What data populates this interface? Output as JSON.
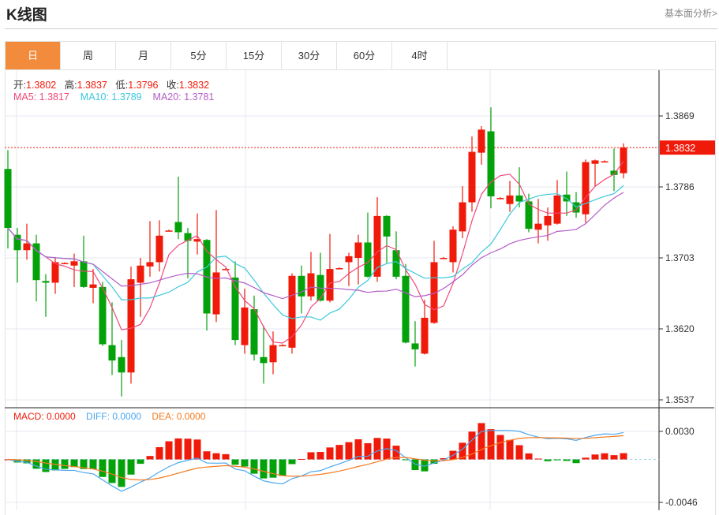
{
  "header": {
    "title": "K线图",
    "link": "基本面分析>"
  },
  "tabs": [
    "日",
    "周",
    "月",
    "5分",
    "15分",
    "30分",
    "60分",
    "4时"
  ],
  "active_tab": 0,
  "info": {
    "open_label": "开:",
    "open": "1.3802",
    "high_label": "高:",
    "high": "1.3837",
    "low_label": "低:",
    "low": "1.3796",
    "close_label": "收:",
    "close": "1.3832",
    "ma5": "MA5: 1.3817",
    "ma10": "MA10: 1.3789",
    "ma20": "MA20: 1.3781"
  },
  "macd_info": {
    "macd": "MACD: 0.0000",
    "diff": "DIFF: 0.0000",
    "dea": "DEA: 0.0000"
  },
  "colors": {
    "up": "#f01a0a",
    "down": "#04a20a",
    "ma5": "#f0487a",
    "ma10": "#3cc8dc",
    "ma20": "#b45cc8",
    "diff": "#4aa8f0",
    "dea": "#f57a20",
    "tab_active": "#f28b3c"
  },
  "chart_data": {
    "type": "candlestick",
    "price_axis": {
      "ticks": [
        "1.3869",
        "1.3786",
        "1.3703",
        "1.3620",
        "1.3537"
      ],
      "range": [
        1.3537,
        1.3869
      ]
    },
    "macd_axis": {
      "ticks": [
        "0.0030",
        "-0.0046"
      ],
      "range": [
        -0.0046,
        0.003
      ]
    },
    "last_price_label": "1.3832",
    "ohlc": [
      [
        1.3807,
        1.3829,
        1.3714,
        1.3738
      ],
      [
        1.373,
        1.3738,
        1.3674,
        1.3712
      ],
      [
        1.3712,
        1.3743,
        1.3701,
        1.372
      ],
      [
        1.372,
        1.373,
        1.3652,
        1.3677
      ],
      [
        1.3676,
        1.3684,
        1.3634,
        1.3674
      ],
      [
        1.3674,
        1.3704,
        1.3661,
        1.3698
      ],
      [
        1.3697,
        1.3698,
        1.3696,
        1.3697
      ],
      [
        1.3694,
        1.3708,
        1.3669,
        1.3699
      ],
      [
        1.3699,
        1.3729,
        1.3668,
        1.3669
      ],
      [
        1.3668,
        1.369,
        1.365,
        1.3672
      ],
      [
        1.3669,
        1.3675,
        1.36,
        1.3602
      ],
      [
        1.3601,
        1.3651,
        1.3566,
        1.3583
      ],
      [
        1.3587,
        1.3607,
        1.3541,
        1.3569
      ],
      [
        1.3569,
        1.3693,
        1.3556,
        1.3678
      ],
      [
        1.3674,
        1.3703,
        1.3634,
        1.3694
      ],
      [
        1.3693,
        1.3746,
        1.3681,
        1.3698
      ],
      [
        1.3698,
        1.3747,
        1.3687,
        1.3729
      ],
      [
        1.3735,
        1.3736,
        1.3734,
        1.3735
      ],
      [
        1.3745,
        1.3798,
        1.3725,
        1.3733
      ],
      [
        1.3732,
        1.3738,
        1.3679,
        1.3723
      ],
      [
        1.3722,
        1.3755,
        1.3707,
        1.3725
      ],
      [
        1.3724,
        1.3725,
        1.3618,
        1.3638
      ],
      [
        1.3637,
        1.3759,
        1.3628,
        1.3686
      ],
      [
        1.369,
        1.3691,
        1.3689,
        1.369
      ],
      [
        1.368,
        1.3699,
        1.3601,
        1.3607
      ],
      [
        1.3601,
        1.3667,
        1.3591,
        1.3645
      ],
      [
        1.3643,
        1.3659,
        1.3583,
        1.359
      ],
      [
        1.3587,
        1.3624,
        1.3556,
        1.358
      ],
      [
        1.3581,
        1.3617,
        1.3567,
        1.3601
      ],
      [
        1.3601,
        1.3602,
        1.36,
        1.3601
      ],
      [
        1.3598,
        1.3685,
        1.3591,
        1.3682
      ],
      [
        1.3682,
        1.3694,
        1.3638,
        1.3658
      ],
      [
        1.3658,
        1.371,
        1.3653,
        1.3685
      ],
      [
        1.3683,
        1.3709,
        1.3652,
        1.3653
      ],
      [
        1.3653,
        1.3731,
        1.3651,
        1.369
      ],
      [
        1.3691,
        1.3692,
        1.369,
        1.3691
      ],
      [
        1.3698,
        1.3709,
        1.367,
        1.3705
      ],
      [
        1.3703,
        1.373,
        1.3672,
        1.3721
      ],
      [
        1.3721,
        1.3756,
        1.368,
        1.3681
      ],
      [
        1.3681,
        1.3774,
        1.3675,
        1.3752
      ],
      [
        1.3752,
        1.3753,
        1.3697,
        1.3728
      ],
      [
        1.3712,
        1.3734,
        1.3678,
        1.3681
      ],
      [
        1.3682,
        1.3696,
        1.3603,
        1.3604
      ],
      [
        1.3603,
        1.3629,
        1.3576,
        1.3596
      ],
      [
        1.3591,
        1.3654,
        1.359,
        1.3633
      ],
      [
        1.3627,
        1.3723,
        1.3626,
        1.3698
      ],
      [
        1.3703,
        1.3704,
        1.3702,
        1.3703
      ],
      [
        1.3698,
        1.374,
        1.3686,
        1.3736
      ],
      [
        1.3734,
        1.3787,
        1.3726,
        1.3768
      ],
      [
        1.3768,
        1.3845,
        1.3757,
        1.3827
      ],
      [
        1.3826,
        1.3857,
        1.3812,
        1.3853
      ],
      [
        1.3851,
        1.3879,
        1.3761,
        1.3775
      ],
      [
        1.3773,
        1.3774,
        1.3772,
        1.3773
      ],
      [
        1.3766,
        1.3793,
        1.3757,
        1.3776
      ],
      [
        1.3776,
        1.3809,
        1.3762,
        1.3769
      ],
      [
        1.3769,
        1.3778,
        1.3733,
        1.3737
      ],
      [
        1.3736,
        1.3772,
        1.372,
        1.3743
      ],
      [
        1.3741,
        1.3762,
        1.3723,
        1.3752
      ],
      [
        1.3743,
        1.3794,
        1.3742,
        1.3776
      ],
      [
        1.3777,
        1.3804,
        1.3752,
        1.3769
      ],
      [
        1.3768,
        1.378,
        1.375,
        1.3756
      ],
      [
        1.3754,
        1.3818,
        1.3744,
        1.3815
      ],
      [
        1.3813,
        1.3818,
        1.3787,
        1.3817
      ],
      [
        1.3816,
        1.3817,
        1.3815,
        1.3816
      ],
      [
        1.3805,
        1.3831,
        1.3781,
        1.38
      ],
      [
        1.3802,
        1.3837,
        1.3796,
        1.3832
      ]
    ]
  }
}
